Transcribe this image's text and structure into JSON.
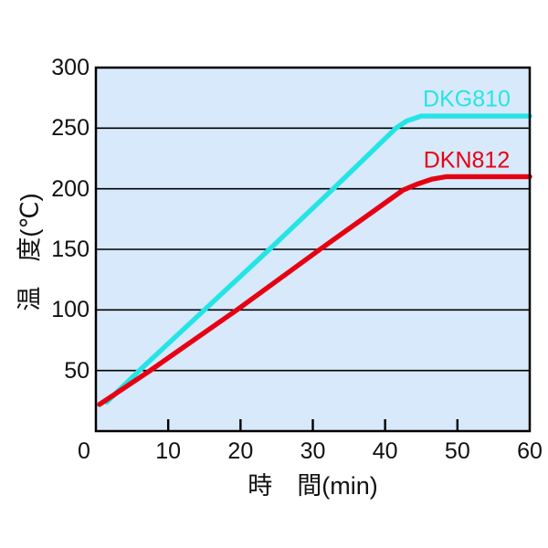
{
  "figure": {
    "background_color": "#ffffff",
    "plot_background_color": "#d7e9fa",
    "frame_color": "#000000",
    "grid_color": "#000000",
    "text_color": "#111111"
  },
  "chart_data": {
    "type": "line",
    "title": "",
    "xlabel": "時　間(min)",
    "ylabel": "温　度(℃)",
    "xlim": [
      0,
      60
    ],
    "ylim": [
      0,
      300
    ],
    "xticks": [
      0,
      10,
      20,
      30,
      40,
      50,
      60
    ],
    "yticks": [
      50,
      100,
      150,
      200,
      250,
      300
    ],
    "grid": "horizontal-only",
    "legend_position": "inline-labels-right",
    "series": [
      {
        "name": "DKG810",
        "color": "#25e4e6",
        "points": [
          [
            1.5,
            24
          ],
          [
            6,
            50
          ],
          [
            15,
            100
          ],
          [
            24,
            150
          ],
          [
            33,
            201
          ],
          [
            41.5,
            250
          ],
          [
            43,
            256
          ],
          [
            45,
            260
          ],
          [
            60,
            260
          ]
        ]
      },
      {
        "name": "DKN812",
        "color": "#e60012",
        "points": [
          [
            0.5,
            22
          ],
          [
            7.5,
            50
          ],
          [
            19.5,
            100
          ],
          [
            31,
            150
          ],
          [
            42.5,
            199
          ],
          [
            44.5,
            204
          ],
          [
            46.5,
            208
          ],
          [
            48.5,
            210
          ],
          [
            60,
            210
          ]
        ]
      }
    ]
  }
}
